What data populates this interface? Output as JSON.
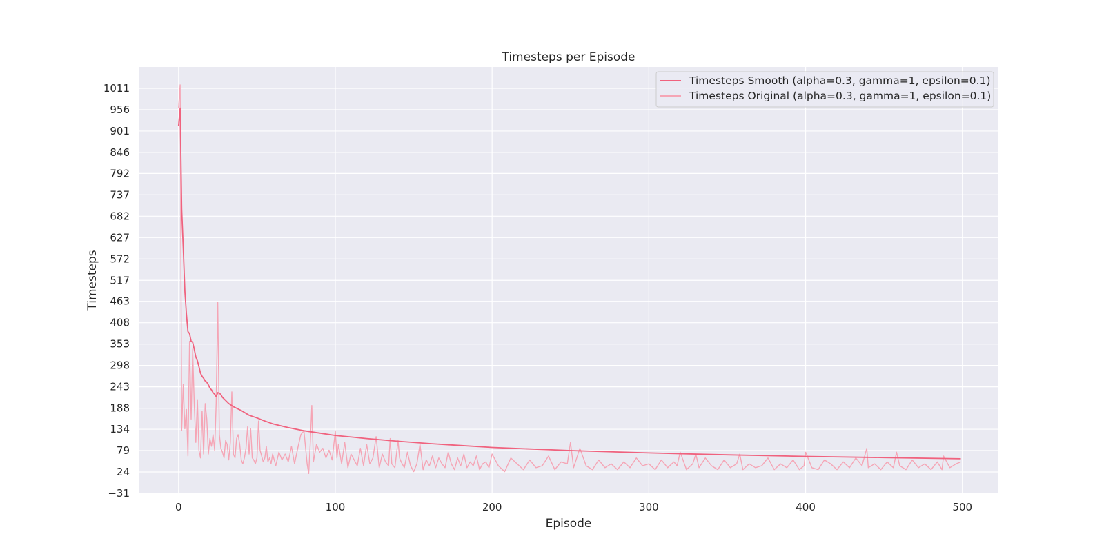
{
  "chart_data": {
    "type": "line",
    "title": "Timesteps per Episode",
    "xlabel": "Episode",
    "ylabel": "Timesteps",
    "xlim": [
      -25,
      523
    ],
    "ylim": [
      -31,
      1066
    ],
    "xticks": [
      0,
      100,
      200,
      300,
      400,
      500
    ],
    "yticks": [
      -31,
      24,
      79,
      134,
      188,
      243,
      298,
      353,
      408,
      463,
      517,
      572,
      627,
      682,
      737,
      792,
      846,
      901,
      956,
      1011
    ],
    "grid": true,
    "legend_position": "top-right",
    "series": [
      {
        "name": "Timesteps Smooth (alpha=0.3, gamma=1, epsilon=0.1)",
        "color": "#f0627e",
        "x": [
          0,
          1,
          2,
          3,
          4,
          5,
          6,
          7,
          8,
          9,
          10,
          11,
          12,
          13,
          14,
          15,
          16,
          17,
          18,
          19,
          20,
          21,
          22,
          23,
          24,
          25,
          26,
          27,
          28,
          30,
          32,
          35,
          40,
          45,
          50,
          55,
          60,
          70,
          80,
          90,
          100,
          120,
          140,
          160,
          180,
          200,
          250,
          300,
          350,
          400,
          450,
          499
        ],
        "y": [
          915,
          960,
          700,
          600,
          490,
          430,
          385,
          380,
          360,
          358,
          340,
          320,
          310,
          295,
          278,
          270,
          265,
          258,
          255,
          248,
          240,
          235,
          228,
          224,
          218,
          228,
          227,
          223,
          216,
          208,
          200,
          192,
          182,
          170,
          163,
          155,
          148,
          138,
          130,
          124,
          118,
          110,
          103,
          97,
          92,
          87,
          79,
          73,
          68,
          64,
          61,
          58
        ]
      },
      {
        "name": "Timesteps Original (alpha=0.3, gamma=1, epsilon=0.1)",
        "color": "#f5a5b5",
        "x": [
          0,
          1,
          2,
          3,
          4,
          5,
          6,
          7,
          8,
          9,
          10,
          11,
          12,
          13,
          14,
          15,
          16,
          17,
          18,
          19,
          20,
          21,
          22,
          23,
          24,
          25,
          26,
          27,
          28,
          29,
          30,
          31,
          32,
          33,
          34,
          35,
          36,
          37,
          38,
          39,
          40,
          41,
          42,
          43,
          44,
          45,
          46,
          47,
          48,
          49,
          50,
          51,
          52,
          53,
          54,
          55,
          56,
          57,
          58,
          59,
          60,
          62,
          64,
          66,
          68,
          70,
          72,
          74,
          76,
          78,
          80,
          82,
          83,
          84,
          85,
          86,
          88,
          90,
          92,
          94,
          96,
          98,
          100,
          101,
          102,
          104,
          106,
          108,
          110,
          112,
          114,
          116,
          118,
          120,
          122,
          124,
          126,
          128,
          130,
          132,
          134,
          135,
          136,
          138,
          140,
          141,
          142,
          144,
          146,
          148,
          150,
          152,
          154,
          156,
          158,
          160,
          162,
          164,
          166,
          168,
          170,
          172,
          174,
          176,
          178,
          180,
          182,
          184,
          186,
          188,
          190,
          192,
          194,
          196,
          198,
          200,
          204,
          208,
          212,
          216,
          220,
          224,
          228,
          232,
          236,
          240,
          244,
          248,
          250,
          252,
          256,
          260,
          264,
          268,
          272,
          276,
          280,
          284,
          288,
          292,
          296,
          300,
          304,
          308,
          312,
          316,
          318,
          320,
          324,
          328,
          330,
          332,
          336,
          340,
          344,
          348,
          352,
          356,
          358,
          360,
          364,
          368,
          372,
          376,
          380,
          384,
          388,
          392,
          396,
          399,
          400,
          404,
          408,
          412,
          416,
          420,
          424,
          428,
          432,
          436,
          439,
          440,
          444,
          448,
          452,
          456,
          458,
          460,
          464,
          468,
          472,
          476,
          480,
          484,
          487,
          488,
          492,
          496,
          499
        ],
        "y": [
          960,
          1020,
          130,
          250,
          135,
          185,
          65,
          360,
          160,
          340,
          200,
          100,
          210,
          80,
          60,
          180,
          70,
          200,
          160,
          70,
          110,
          90,
          120,
          80,
          200,
          460,
          120,
          85,
          75,
          60,
          105,
          95,
          55,
          100,
          230,
          70,
          60,
          110,
          120,
          95,
          55,
          45,
          60,
          85,
          140,
          70,
          135,
          60,
          55,
          45,
          60,
          155,
          80,
          65,
          50,
          60,
          90,
          50,
          60,
          45,
          70,
          40,
          75,
          55,
          70,
          50,
          90,
          45,
          85,
          120,
          130,
          45,
          20,
          95,
          195,
          50,
          95,
          75,
          85,
          60,
          80,
          55,
          130,
          60,
          95,
          45,
          100,
          35,
          70,
          55,
          40,
          85,
          40,
          95,
          45,
          60,
          115,
          35,
          70,
          50,
          40,
          110,
          45,
          35,
          105,
          60,
          50,
          35,
          75,
          40,
          25,
          45,
          95,
          30,
          55,
          40,
          65,
          35,
          60,
          45,
          35,
          75,
          45,
          30,
          60,
          40,
          70,
          35,
          50,
          40,
          65,
          30,
          45,
          50,
          35,
          70,
          40,
          25,
          60,
          45,
          30,
          55,
          35,
          40,
          65,
          30,
          50,
          45,
          100,
          35,
          85,
          40,
          30,
          55,
          35,
          45,
          30,
          50,
          35,
          60,
          40,
          45,
          30,
          55,
          35,
          50,
          40,
          75,
          30,
          45,
          70,
          35,
          60,
          40,
          30,
          55,
          35,
          45,
          70,
          30,
          45,
          35,
          40,
          60,
          30,
          45,
          35,
          55,
          30,
          40,
          75,
          35,
          30,
          55,
          45,
          30,
          50,
          35,
          60,
          40,
          85,
          35,
          45,
          30,
          50,
          35,
          75,
          40,
          30,
          55,
          35,
          45,
          30,
          50,
          30,
          65,
          35,
          45,
          50
        ]
      }
    ]
  },
  "colors": {
    "plot_background": "#eaeaf2",
    "gridline": "#ffffff",
    "text": "#262626"
  }
}
